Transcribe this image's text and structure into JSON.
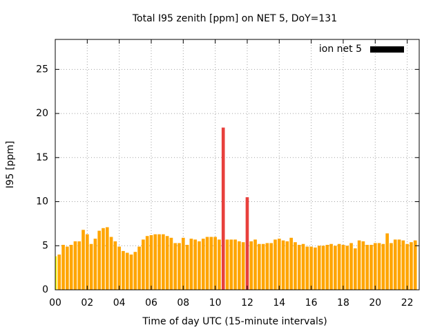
{
  "chart_data": {
    "type": "bar",
    "title": "Total I95 zenith [ppm] on NET 5, DoY=131",
    "xlabel": "Time of day UTC (15-minute intervals)",
    "ylabel": "I95 [ppm]",
    "x": [
      0,
      0.25,
      0.5,
      0.75,
      1,
      1.25,
      1.5,
      1.75,
      2,
      2.25,
      2.5,
      2.75,
      3,
      3.25,
      3.5,
      3.75,
      4,
      4.25,
      4.5,
      4.75,
      5,
      5.25,
      5.5,
      5.75,
      6,
      6.25,
      6.5,
      6.75,
      7,
      7.25,
      7.5,
      7.75,
      8,
      8.25,
      8.5,
      8.75,
      9,
      9.25,
      9.5,
      9.75,
      10,
      10.25,
      10.5,
      10.75,
      11,
      11.25,
      11.5,
      11.75,
      12,
      12.25,
      12.5,
      12.75,
      13,
      13.25,
      13.5,
      13.75,
      14,
      14.25,
      14.5,
      14.75,
      15,
      15.25,
      15.5,
      15.75,
      16,
      16.25,
      16.5,
      16.75,
      17,
      17.25,
      17.5,
      17.75,
      18,
      18.25,
      18.5,
      18.75,
      19,
      19.25,
      19.5,
      19.75,
      20,
      20.25,
      20.5,
      20.75,
      21,
      21.25,
      21.5,
      21.75,
      22,
      22.25,
      22.5
    ],
    "series": [
      {
        "name": "ion net 5",
        "color": "#000000",
        "values": [
          3.8,
          4.0,
          5.1,
          4.9,
          5.1,
          5.5,
          5.5,
          6.8,
          6.3,
          5.2,
          5.8,
          6.7,
          7.0,
          7.1,
          6.0,
          5.5,
          4.9,
          4.4,
          4.2,
          4.0,
          4.3,
          4.9,
          5.7,
          6.1,
          6.2,
          6.3,
          6.3,
          6.3,
          6.1,
          5.9,
          5.3,
          5.3,
          5.9,
          5.1,
          5.8,
          5.7,
          5.5,
          5.8,
          6.0,
          6.0,
          6.0,
          5.7,
          18.4,
          5.7,
          5.7,
          5.7,
          5.5,
          5.4,
          10.5,
          5.5,
          5.7,
          5.2,
          5.2,
          5.3,
          5.3,
          5.7,
          5.8,
          5.6,
          5.5,
          5.9,
          5.4,
          5.1,
          5.2,
          4.9,
          4.9,
          4.8,
          5.0,
          5.0,
          5.1,
          5.2,
          5.0,
          5.2,
          5.1,
          5.0,
          5.3,
          4.7,
          5.6,
          5.5,
          5.1,
          5.1,
          5.3,
          5.3,
          5.2,
          6.4,
          5.3,
          5.7,
          5.7,
          5.6,
          5.2,
          5.4,
          5.6
        ],
        "bar_colors": [
          "#ffff00",
          "#ffa500",
          "#ffa500",
          "#ffa500",
          "#ffa500",
          "#ffa500",
          "#ffa500",
          "#ffa500",
          "#ffa500",
          "#ffa500",
          "#ffa500",
          "#ffa500",
          "#ffa500",
          "#ffa500",
          "#ffa500",
          "#ffa500",
          "#ffa500",
          "#ffa500",
          "#ffa500",
          "#ffa500",
          "#ffa500",
          "#ffa500",
          "#ffa500",
          "#ffa500",
          "#ffa500",
          "#ffa500",
          "#ffa500",
          "#ffa500",
          "#ffa500",
          "#ffa500",
          "#ffa500",
          "#ffa500",
          "#ffa500",
          "#ffa500",
          "#ffa500",
          "#ffa500",
          "#ffa500",
          "#ffa500",
          "#ffa500",
          "#ffa500",
          "#ffa500",
          "#ffa500",
          "#e8403c",
          "#ffa500",
          "#ffa500",
          "#ffa500",
          "#ffa500",
          "#ffa500",
          "#e8403c",
          "#ffa500",
          "#ffa500",
          "#ffa500",
          "#ffa500",
          "#ffa500",
          "#ffa500",
          "#ffa500",
          "#ffa500",
          "#ffa500",
          "#ffa500",
          "#ffa500",
          "#ffa500",
          "#ffa500",
          "#ffa500",
          "#ffa500",
          "#ffa500",
          "#ffa500",
          "#ffa500",
          "#ffa500",
          "#ffa500",
          "#ffa500",
          "#ffa500",
          "#ffa500",
          "#ffa500",
          "#ffa500",
          "#ffa500",
          "#ffa500",
          "#ffa500",
          "#ffa500",
          "#ffa500",
          "#ffa500",
          "#ffa500",
          "#ffa500",
          "#ffa500",
          "#ffa500",
          "#ffa500",
          "#ffa500",
          "#ffa500",
          "#ffa500",
          "#ffa500",
          "#ffa500",
          "#ffa500"
        ]
      }
    ],
    "xlim": [
      0,
      22.75
    ],
    "ylim": [
      0,
      28.4
    ],
    "xticks": [
      {
        "value": 0,
        "label": "00"
      },
      {
        "value": 2,
        "label": "02"
      },
      {
        "value": 4,
        "label": "04"
      },
      {
        "value": 6,
        "label": "06"
      },
      {
        "value": 8,
        "label": "08"
      },
      10,
      12,
      14,
      16,
      18,
      20,
      22
    ],
    "yticks": [
      0,
      5,
      10,
      15,
      20,
      25
    ],
    "grid": true,
    "legend": "top-right"
  }
}
